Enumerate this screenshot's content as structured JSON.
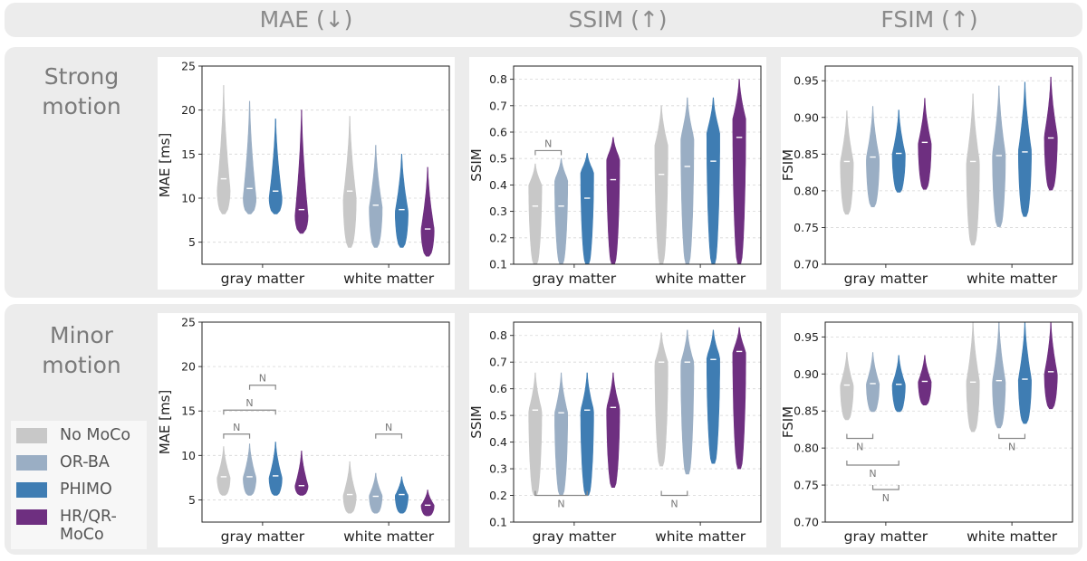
{
  "column_headers": [
    "MAE (↓)",
    "SSIM (↑)",
    "FSIM (↑)"
  ],
  "row_labels": [
    [
      "Strong",
      "motion"
    ],
    [
      "Minor",
      "motion"
    ]
  ],
  "legend": [
    {
      "label": "No MoCo",
      "color": "#c8c8c8"
    },
    {
      "label": "OR-BA",
      "color": "#9aaec4"
    },
    {
      "label": "PHIMO",
      "color": "#3f7db3"
    },
    {
      "label": "HR/QR-MoCo",
      "color": "#6e2f80"
    }
  ],
  "chart_data": [
    {
      "type": "violin",
      "title": "Strong motion — MAE",
      "ylabel": "MAE [ms]",
      "categories": [
        "gray matter",
        "white matter"
      ],
      "ylim": [
        2.5,
        25
      ],
      "yticks": [
        5,
        10,
        15,
        20,
        25
      ],
      "tick_decimals": 0,
      "series": [
        {
          "name": "No MoCo",
          "gray matter": {
            "min": 8.2,
            "max": 22.8,
            "mode": 11,
            "median": 12.2
          },
          "white matter": {
            "min": 4.4,
            "max": 19.3,
            "mode": 10,
            "median": 10.8
          }
        },
        {
          "name": "OR-BA",
          "gray matter": {
            "min": 8.2,
            "max": 21.0,
            "mode": 10,
            "median": 11.1
          },
          "white matter": {
            "min": 4.4,
            "max": 16.0,
            "mode": 9,
            "median": 9.2
          }
        },
        {
          "name": "PHIMO",
          "gray matter": {
            "min": 8.2,
            "max": 19.0,
            "mode": 10,
            "median": 10.8
          },
          "white matter": {
            "min": 4.4,
            "max": 15.0,
            "mode": 8.5,
            "median": 8.7
          }
        },
        {
          "name": "HR/QR-MoCo",
          "gray matter": {
            "min": 6.0,
            "max": 20.0,
            "mode": 8,
            "median": 8.7
          },
          "white matter": {
            "min": 3.4,
            "max": 13.5,
            "mode": 6.5,
            "median": 6.5
          }
        }
      ],
      "significance": []
    },
    {
      "type": "violin",
      "title": "Strong motion — SSIM",
      "ylabel": "SSIM",
      "categories": [
        "gray matter",
        "white matter"
      ],
      "ylim": [
        0.1,
        0.85
      ],
      "yticks": [
        0.1,
        0.2,
        0.3,
        0.4,
        0.5,
        0.6,
        0.7,
        0.8
      ],
      "tick_decimals": 1,
      "series": [
        {
          "name": "No MoCo",
          "gray matter": {
            "min": 0.1,
            "max": 0.48,
            "mode": 0.4,
            "median": 0.32
          },
          "white matter": {
            "min": 0.1,
            "max": 0.7,
            "mode": 0.55,
            "median": 0.44
          }
        },
        {
          "name": "OR-BA",
          "gray matter": {
            "min": 0.1,
            "max": 0.5,
            "mode": 0.42,
            "median": 0.32
          },
          "white matter": {
            "min": 0.1,
            "max": 0.73,
            "mode": 0.58,
            "median": 0.47
          }
        },
        {
          "name": "PHIMO",
          "gray matter": {
            "min": 0.1,
            "max": 0.52,
            "mode": 0.45,
            "median": 0.35
          },
          "white matter": {
            "min": 0.1,
            "max": 0.73,
            "mode": 0.6,
            "median": 0.49
          }
        },
        {
          "name": "HR/QR-MoCo",
          "gray matter": {
            "min": 0.1,
            "max": 0.58,
            "mode": 0.5,
            "median": 0.42
          },
          "white matter": {
            "min": 0.1,
            "max": 0.8,
            "mode": 0.65,
            "median": 0.58
          }
        }
      ],
      "significance": [
        {
          "category": "gray matter",
          "from": "No MoCo",
          "to": "OR-BA",
          "label": "N",
          "y": 0.53,
          "below": false
        }
      ]
    },
    {
      "type": "violin",
      "title": "Strong motion — FSIM",
      "ylabel": "FSIM",
      "categories": [
        "gray matter",
        "white matter"
      ],
      "ylim": [
        0.7,
        0.97
      ],
      "yticks": [
        0.7,
        0.75,
        0.8,
        0.85,
        0.9,
        0.95
      ],
      "tick_decimals": 2,
      "series": [
        {
          "name": "No MoCo",
          "gray matter": {
            "min": 0.768,
            "max": 0.909,
            "mode": 0.84,
            "median": 0.84
          },
          "white matter": {
            "min": 0.726,
            "max": 0.932,
            "mode": 0.84,
            "median": 0.84
          }
        },
        {
          "name": "OR-BA",
          "gray matter": {
            "min": 0.778,
            "max": 0.915,
            "mode": 0.845,
            "median": 0.846
          },
          "white matter": {
            "min": 0.751,
            "max": 0.943,
            "mode": 0.85,
            "median": 0.848
          }
        },
        {
          "name": "PHIMO",
          "gray matter": {
            "min": 0.798,
            "max": 0.91,
            "mode": 0.85,
            "median": 0.851
          },
          "white matter": {
            "min": 0.765,
            "max": 0.948,
            "mode": 0.855,
            "median": 0.853
          }
        },
        {
          "name": "HR/QR-MoCo",
          "gray matter": {
            "min": 0.802,
            "max": 0.926,
            "mode": 0.865,
            "median": 0.866
          },
          "white matter": {
            "min": 0.801,
            "max": 0.955,
            "mode": 0.875,
            "median": 0.872
          }
        }
      ],
      "significance": []
    },
    {
      "type": "violin",
      "title": "Minor motion — MAE",
      "ylabel": "MAE [ms]",
      "categories": [
        "gray matter",
        "white matter"
      ],
      "ylim": [
        2.5,
        25
      ],
      "yticks": [
        5,
        10,
        15,
        20,
        25
      ],
      "tick_decimals": 0,
      "series": [
        {
          "name": "No MoCo",
          "gray matter": {
            "min": 5.5,
            "max": 11.0,
            "mode": 7.5,
            "median": 7.6
          },
          "white matter": {
            "min": 3.5,
            "max": 9.3,
            "mode": 5.5,
            "median": 5.6
          }
        },
        {
          "name": "OR-BA",
          "gray matter": {
            "min": 5.5,
            "max": 11.3,
            "mode": 7.5,
            "median": 7.6
          },
          "white matter": {
            "min": 3.5,
            "max": 8.0,
            "mode": 5.5,
            "median": 5.4
          }
        },
        {
          "name": "PHIMO",
          "gray matter": {
            "min": 5.5,
            "max": 11.5,
            "mode": 7.5,
            "median": 7.7
          },
          "white matter": {
            "min": 3.5,
            "max": 7.6,
            "mode": 5.5,
            "median": 5.6
          }
        },
        {
          "name": "HR/QR-MoCo",
          "gray matter": {
            "min": 5.5,
            "max": 10.5,
            "mode": 6.6,
            "median": 6.6
          },
          "white matter": {
            "min": 3.2,
            "max": 6.1,
            "mode": 4.4,
            "median": 4.4
          }
        }
      ],
      "significance": [
        {
          "category": "gray matter",
          "from": "No MoCo",
          "to": "OR-BA",
          "label": "N",
          "y": 12.4,
          "below": false
        },
        {
          "category": "gray matter",
          "from": "No MoCo",
          "to": "PHIMO",
          "label": "N",
          "y": 15.1,
          "below": false
        },
        {
          "category": "gray matter",
          "from": "OR-BA",
          "to": "PHIMO",
          "label": "N",
          "y": 17.9,
          "below": false
        },
        {
          "category": "white matter",
          "from": "OR-BA",
          "to": "PHIMO",
          "label": "N",
          "y": 12.4,
          "below": false
        }
      ]
    },
    {
      "type": "violin",
      "title": "Minor motion — SSIM",
      "ylabel": "SSIM",
      "categories": [
        "gray matter",
        "white matter"
      ],
      "ylim": [
        0.1,
        0.85
      ],
      "yticks": [
        0.1,
        0.2,
        0.3,
        0.4,
        0.5,
        0.6,
        0.7,
        0.8
      ],
      "tick_decimals": 1,
      "series": [
        {
          "name": "No MoCo",
          "gray matter": {
            "min": 0.2,
            "max": 0.66,
            "mode": 0.52,
            "median": 0.52
          },
          "white matter": {
            "min": 0.31,
            "max": 0.81,
            "mode": 0.7,
            "median": 0.7
          }
        },
        {
          "name": "OR-BA",
          "gray matter": {
            "min": 0.2,
            "max": 0.66,
            "mode": 0.51,
            "median": 0.51
          },
          "white matter": {
            "min": 0.28,
            "max": 0.82,
            "mode": 0.7,
            "median": 0.7
          }
        },
        {
          "name": "PHIMO",
          "gray matter": {
            "min": 0.2,
            "max": 0.66,
            "mode": 0.52,
            "median": 0.52
          },
          "white matter": {
            "min": 0.32,
            "max": 0.82,
            "mode": 0.72,
            "median": 0.71
          }
        },
        {
          "name": "HR/QR-MoCo",
          "gray matter": {
            "min": 0.23,
            "max": 0.66,
            "mode": 0.53,
            "median": 0.53
          },
          "white matter": {
            "min": 0.3,
            "max": 0.83,
            "mode": 0.74,
            "median": 0.74
          }
        }
      ],
      "significance": [
        {
          "category": "gray matter",
          "from": "No MoCo",
          "to": "PHIMO",
          "label": "N",
          "y": 0.2,
          "below": true
        },
        {
          "category": "white matter",
          "from": "No MoCo",
          "to": "OR-BA",
          "label": "N",
          "y": 0.2,
          "below": true
        }
      ]
    },
    {
      "type": "violin",
      "title": "Minor motion — FSIM",
      "ylabel": "FSIM",
      "categories": [
        "gray matter",
        "white matter"
      ],
      "ylim": [
        0.7,
        0.97
      ],
      "yticks": [
        0.7,
        0.75,
        0.8,
        0.85,
        0.9,
        0.95
      ],
      "tick_decimals": 2,
      "series": [
        {
          "name": "No MoCo",
          "gray matter": {
            "min": 0.838,
            "max": 0.929,
            "mode": 0.885,
            "median": 0.885
          },
          "white matter": {
            "min": 0.822,
            "max": 0.97,
            "mode": 0.89,
            "median": 0.889
          }
        },
        {
          "name": "OR-BA",
          "gray matter": {
            "min": 0.849,
            "max": 0.929,
            "mode": 0.887,
            "median": 0.887
          },
          "white matter": {
            "min": 0.827,
            "max": 0.97,
            "mode": 0.89,
            "median": 0.891
          }
        },
        {
          "name": "PHIMO",
          "gray matter": {
            "min": 0.849,
            "max": 0.925,
            "mode": 0.886,
            "median": 0.886
          },
          "white matter": {
            "min": 0.833,
            "max": 0.97,
            "mode": 0.893,
            "median": 0.893
          }
        },
        {
          "name": "HR/QR-MoCo",
          "gray matter": {
            "min": 0.858,
            "max": 0.925,
            "mode": 0.89,
            "median": 0.89
          },
          "white matter": {
            "min": 0.853,
            "max": 0.97,
            "mode": 0.9,
            "median": 0.903
          }
        }
      ],
      "significance": [
        {
          "category": "gray matter",
          "from": "No MoCo",
          "to": "OR-BA",
          "label": "N",
          "y": 0.813,
          "below": true
        },
        {
          "category": "gray matter",
          "from": "No MoCo",
          "to": "PHIMO",
          "label": "N",
          "y": 0.777,
          "below": true
        },
        {
          "category": "gray matter",
          "from": "OR-BA",
          "to": "PHIMO",
          "label": "N",
          "y": 0.744,
          "below": true
        },
        {
          "category": "white matter",
          "from": "OR-BA",
          "to": "PHIMO",
          "label": "N",
          "y": 0.813,
          "below": true
        }
      ]
    }
  ]
}
